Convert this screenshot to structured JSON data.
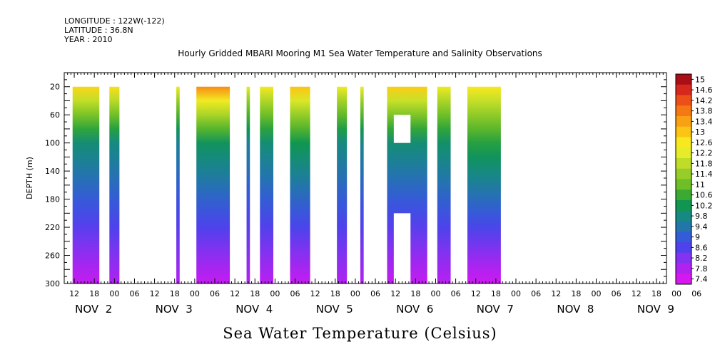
{
  "header": {
    "longitude": "LONGITUDE : 122W(-122)",
    "latitude": "LATITUDE : 36.8N",
    "year": "YEAR : 2010"
  },
  "chart_data": {
    "type": "heatmap",
    "title": "Hourly Gridded MBARI Mooring M1 Sea Water Temperature and Salinity Observations",
    "bottom_title": "Sea Water Temperature (Celsius)",
    "ylabel": "DEPTH (m)",
    "xlabel": "",
    "x_axis": {
      "unit": "hours since NOV 2 00:00",
      "xlim": [
        -9,
        171
      ],
      "hour_ticks": [
        "12",
        "18",
        "00",
        "06",
        "12",
        "18",
        "00",
        "06",
        "12",
        "18",
        "00",
        "06",
        "12",
        "18",
        "00",
        "06",
        "12",
        "18",
        "00",
        "06",
        "12",
        "18",
        "00",
        "06",
        "12",
        "18",
        "00",
        "06",
        "12",
        "18",
        "00",
        "06"
      ],
      "day_labels": [
        {
          "label": "NOV  2",
          "hour": 0
        },
        {
          "label": "NOV  3",
          "hour": 24
        },
        {
          "label": "NOV  4",
          "hour": 48
        },
        {
          "label": "NOV  5",
          "hour": 72
        },
        {
          "label": "NOV  6",
          "hour": 96
        },
        {
          "label": "NOV  7",
          "hour": 120
        },
        {
          "label": "NOV  8",
          "hour": 144
        },
        {
          "label": "NOV  9",
          "hour": 168
        }
      ]
    },
    "y_axis": {
      "ylim": [
        300,
        0
      ],
      "ticks": [
        20,
        60,
        100,
        140,
        180,
        220,
        260,
        300
      ],
      "data_top": 20
    },
    "colorbar": {
      "min": 7.4,
      "max": 15,
      "labels": [
        "15",
        "14.6",
        "14.2",
        "13.8",
        "13.4",
        "13",
        "12.6",
        "12.2",
        "11.8",
        "11.4",
        "11",
        "10.6",
        "10.2",
        "9.8",
        "9.4",
        "9",
        "8.6",
        "8.2",
        "7.8",
        "7.4"
      ]
    },
    "data_segments": [
      {
        "start": -6.5,
        "end": 1.5,
        "surface_temp": 12.8,
        "mid_temp": 9.9,
        "bottom_temp": 7.6
      },
      {
        "start": 4.5,
        "end": 7.5,
        "surface_temp": 12.7,
        "mid_temp": 9.8,
        "bottom_temp": 7.8
      },
      {
        "start": 24.5,
        "end": 25.5,
        "surface_temp": 12.3,
        "mid_temp": 9.6,
        "bottom_tempLuminance": 7.8,
        "bottom_temp": 7.8
      },
      {
        "start": 30.5,
        "end": 40.5,
        "surface_temp": 13.6,
        "mid_temp": 10.1,
        "bottom_temp": 7.6
      },
      {
        "start": 45.5,
        "end": 46.5,
        "surface_temp": 12.2,
        "mid_temp": 9.6,
        "bottom_temp": 7.8
      },
      {
        "start": 49.5,
        "end": 53.5,
        "surface_temp": 12.5,
        "mid_temp": 9.9,
        "bottom_temp": 7.7
      },
      {
        "start": 58.5,
        "end": 64.5,
        "surface_temp": 13.0,
        "mid_temp": 10.2,
        "bottom_temp": 7.6
      },
      {
        "start": 72.5,
        "end": 75.5,
        "surface_temp": 12.4,
        "mid_temp": 9.8,
        "bottom_temp": 7.8
      },
      {
        "start": 79.5,
        "end": 80.5,
        "surface_temp": 12.3,
        "mid_temp": 9.7,
        "bottom_temp": 7.8
      },
      {
        "start": 87.5,
        "end": 99.5,
        "surface_temp": 12.9,
        "mid_temp": 9.9,
        "bottom_temp": 7.6
      },
      {
        "start": 102.5,
        "end": 106.5,
        "surface_temp": 12.4,
        "mid_temp": 10.0,
        "bottom_temp": 7.7
      },
      {
        "start": 111.5,
        "end": 121.5,
        "surface_temp": 12.6,
        "mid_temp": 10.4,
        "bottom_temp": 7.5
      }
    ],
    "gaps": [
      {
        "start": 89.5,
        "end": 94.5,
        "depth_top": 60,
        "depth_bottom": 100
      },
      {
        "start": 89.5,
        "end": 94.5,
        "depth_top": 200,
        "depth_bottom": 300
      }
    ]
  }
}
